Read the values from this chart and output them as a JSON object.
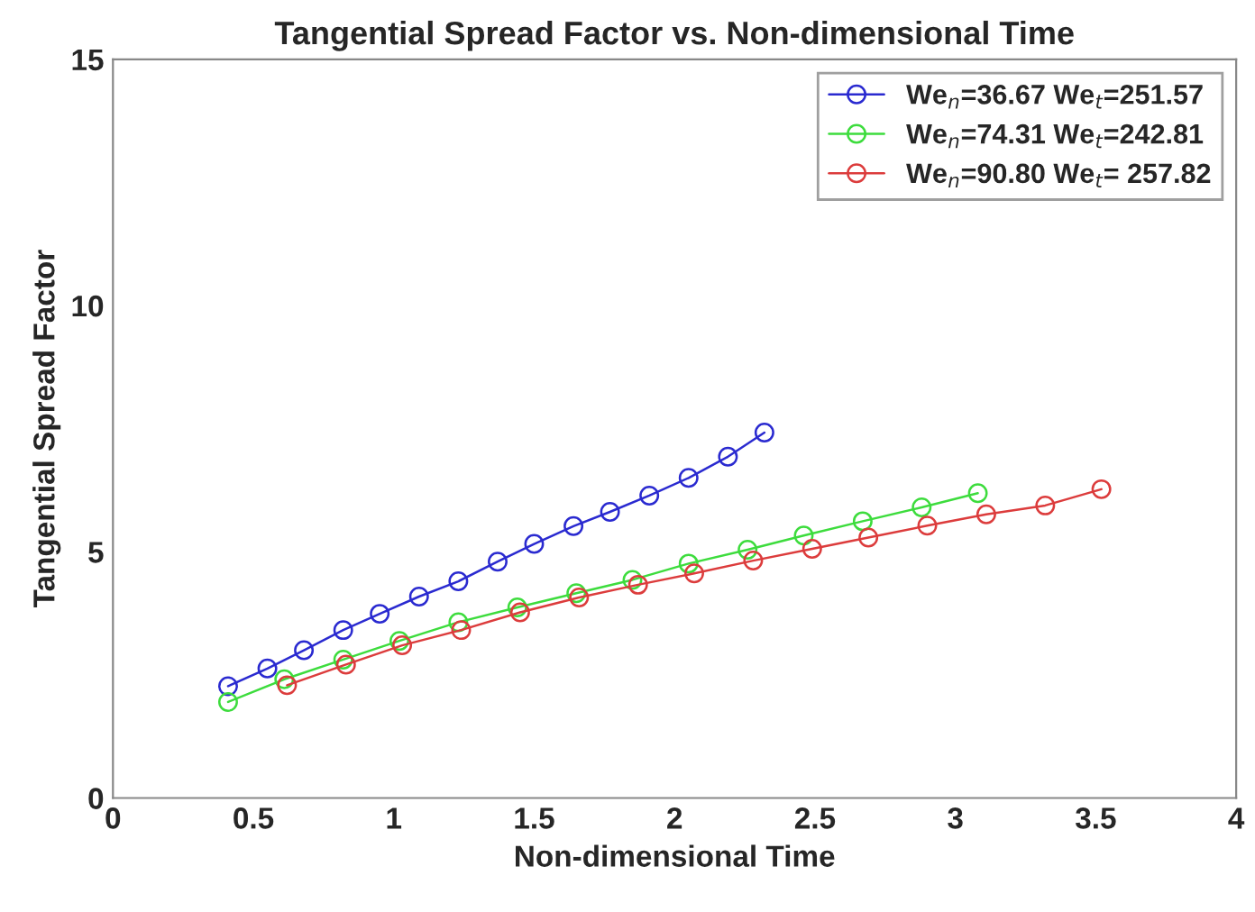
{
  "chart_data": {
    "type": "line",
    "title": "Tangential Spread Factor vs. Non-dimensional Time",
    "xlabel": "Non-dimensional Time",
    "ylabel": "Tangential Spread Factor",
    "xlim": [
      0,
      4
    ],
    "xticks": [
      0,
      0.5,
      1,
      1.5,
      2,
      2.5,
      3,
      3.5,
      4
    ],
    "ylim": [
      0,
      15
    ],
    "yticks": [
      0,
      5,
      10,
      15
    ],
    "grid": false,
    "legend": "top right",
    "marker": "circle",
    "line_style": "solid",
    "series": [
      {
        "name": "We$_{n}$=36.67 We$_{t}$=251.57",
        "color": "#2a2ad0",
        "x": [
          0.41,
          0.55,
          0.68,
          0.82,
          0.95,
          1.09,
          1.23,
          1.37,
          1.5,
          1.64,
          1.77,
          1.91,
          2.05,
          2.19,
          2.32
        ],
        "values": [
          2.27,
          2.63,
          3.0,
          3.41,
          3.74,
          4.09,
          4.4,
          4.8,
          5.16,
          5.52,
          5.81,
          6.14,
          6.5,
          6.93,
          7.42
        ]
      },
      {
        "name": "We$_{n}$=74.31 We$_{t}$=242.81",
        "color": "#3ddc3d",
        "x": [
          0.41,
          0.61,
          0.82,
          1.02,
          1.23,
          1.44,
          1.65,
          1.85,
          2.05,
          2.26,
          2.46,
          2.67,
          2.88,
          3.08
        ],
        "values": [
          1.95,
          2.41,
          2.81,
          3.19,
          3.57,
          3.87,
          4.16,
          4.43,
          4.76,
          5.04,
          5.33,
          5.62,
          5.9,
          6.19
        ]
      },
      {
        "name": "We$_{n}$=90.80 We$_{t}$= 257.82",
        "color": "#dc3c3c",
        "x": [
          0.62,
          0.83,
          1.03,
          1.24,
          1.45,
          1.66,
          1.87,
          2.07,
          2.28,
          2.49,
          2.69,
          2.9,
          3.11,
          3.32,
          3.52
        ],
        "values": [
          2.29,
          2.71,
          3.1,
          3.41,
          3.77,
          4.07,
          4.33,
          4.56,
          4.82,
          5.06,
          5.29,
          5.53,
          5.76,
          5.94,
          6.27
        ]
      }
    ]
  }
}
